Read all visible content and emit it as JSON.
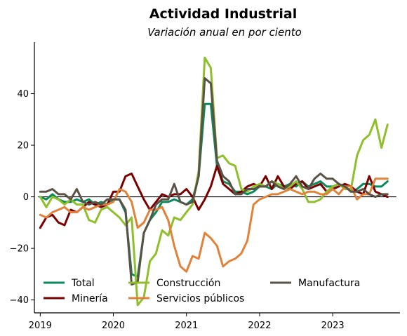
{
  "chart_data": {
    "type": "line",
    "title": "Actividad Industrial",
    "subtitle": "Variación anual en por ciento",
    "xlabel": "",
    "ylabel": "",
    "xlim": [
      2018.92,
      2023.92
    ],
    "ylim": [
      -45,
      60
    ],
    "x_ticks": [
      2019,
      2020,
      2021,
      2022,
      2023
    ],
    "x_tick_labels": [
      "2019",
      "2020",
      "2021",
      "2022",
      "2023"
    ],
    "y_ticks": [
      -40,
      -20,
      0,
      20,
      40
    ],
    "y_tick_labels": [
      "−40",
      "−20",
      "0",
      "20",
      "40"
    ],
    "zero_line": true,
    "grid": false,
    "legend_placement": "lower-left",
    "series": [
      {
        "name": "Total",
        "color": "#0a8a5a",
        "x": [
          2019.0,
          2019.083,
          2019.167,
          2019.25,
          2019.333,
          2019.417,
          2019.5,
          2019.583,
          2019.667,
          2019.75,
          2019.833,
          2019.917,
          2020.0,
          2020.083,
          2020.167,
          2020.25,
          2020.333,
          2020.417,
          2020.5,
          2020.583,
          2020.667,
          2020.75,
          2020.833,
          2020.917,
          2021.0,
          2021.083,
          2021.167,
          2021.25,
          2021.333,
          2021.417,
          2021.5,
          2021.583,
          2021.667,
          2021.75,
          2021.833,
          2021.917,
          2022.0,
          2022.083,
          2022.167,
          2022.25,
          2022.333,
          2022.417,
          2022.5,
          2022.583,
          2022.667,
          2022.75,
          2022.833,
          2022.917,
          2023.0,
          2023.083,
          2023.167,
          2023.25,
          2023.333,
          2023.417,
          2023.5,
          2023.583,
          2023.667,
          2023.75
        ],
        "y": [
          0,
          -1,
          1,
          -1,
          -2,
          -2,
          -1,
          -2,
          -1,
          -3,
          -2,
          -3,
          -1,
          -1,
          -6,
          -30,
          -31,
          -14,
          -9,
          -6,
          -2,
          -2,
          -1,
          -2,
          -3,
          -1,
          8,
          36,
          36,
          12,
          6,
          5,
          2,
          2,
          1,
          2,
          4,
          4,
          3,
          5,
          4,
          5,
          4,
          6,
          4,
          5,
          6,
          4,
          4,
          5,
          4,
          2,
          3,
          5,
          5,
          4,
          4,
          6
        ]
      },
      {
        "name": "Minería",
        "color": "#7a0000",
        "x": [
          2019.0,
          2019.083,
          2019.167,
          2019.25,
          2019.333,
          2019.417,
          2019.5,
          2019.583,
          2019.667,
          2019.75,
          2019.833,
          2019.917,
          2020.0,
          2020.083,
          2020.167,
          2020.25,
          2020.333,
          2020.417,
          2020.5,
          2020.583,
          2020.667,
          2020.75,
          2020.833,
          2020.917,
          2021.0,
          2021.083,
          2021.167,
          2021.25,
          2021.333,
          2021.417,
          2021.5,
          2021.583,
          2021.667,
          2021.75,
          2021.833,
          2021.917,
          2022.0,
          2022.083,
          2022.167,
          2022.25,
          2022.333,
          2022.417,
          2022.5,
          2022.583,
          2022.667,
          2022.75,
          2022.833,
          2022.917,
          2023.0,
          2023.083,
          2023.167,
          2023.25,
          2023.333,
          2023.417,
          2023.5,
          2023.583,
          2023.667,
          2023.75
        ],
        "y": [
          -12,
          -8,
          -7,
          -10,
          -11,
          -5,
          -6,
          -4,
          -2,
          -3,
          -4,
          -3,
          2,
          2,
          8,
          9,
          4,
          -1,
          -5,
          -2,
          1,
          0,
          1,
          1,
          3,
          0,
          -5,
          -1,
          4,
          12,
          5,
          3,
          1,
          2,
          4,
          5,
          4,
          8,
          3,
          8,
          4,
          3,
          5,
          6,
          3,
          4,
          5,
          2,
          3,
          4,
          5,
          4,
          2,
          1,
          8,
          2,
          1,
          0
        ]
      },
      {
        "name": "Construcción",
        "color": "#8fbf2a",
        "x": [
          2019.0,
          2019.083,
          2019.167,
          2019.25,
          2019.333,
          2019.417,
          2019.5,
          2019.583,
          2019.667,
          2019.75,
          2019.833,
          2019.917,
          2020.0,
          2020.083,
          2020.167,
          2020.25,
          2020.333,
          2020.417,
          2020.5,
          2020.583,
          2020.667,
          2020.75,
          2020.833,
          2020.917,
          2021.0,
          2021.083,
          2021.167,
          2021.25,
          2021.333,
          2021.417,
          2021.5,
          2021.583,
          2021.667,
          2021.75,
          2021.833,
          2021.917,
          2022.0,
          2022.083,
          2022.167,
          2022.25,
          2022.333,
          2022.417,
          2022.5,
          2022.583,
          2022.667,
          2022.75,
          2022.833,
          2022.917,
          2023.0,
          2023.083,
          2023.167,
          2023.25,
          2023.333,
          2023.417,
          2023.5,
          2023.583,
          2023.667,
          2023.75
        ],
        "y": [
          0,
          -4,
          0,
          -1,
          -3,
          -1,
          -3,
          -3,
          -9,
          -10,
          -5,
          -4,
          -6,
          -8,
          -11,
          -8,
          -42,
          -39,
          -25,
          -22,
          -13,
          -15,
          -8,
          -9,
          -6,
          -3,
          10,
          54,
          50,
          15,
          16,
          13,
          12,
          3,
          2,
          4,
          5,
          4,
          6,
          5,
          3,
          4,
          6,
          3,
          -2,
          -2,
          -1,
          2,
          4,
          5,
          3,
          3,
          16,
          22,
          24,
          30,
          19,
          28
        ]
      },
      {
        "name": "Servicios públicos",
        "color": "#e0823a",
        "x": [
          2019.0,
          2019.083,
          2019.167,
          2019.25,
          2019.333,
          2019.417,
          2019.5,
          2019.583,
          2019.667,
          2019.75,
          2019.833,
          2019.917,
          2020.0,
          2020.083,
          2020.167,
          2020.25,
          2020.333,
          2020.417,
          2020.5,
          2020.583,
          2020.667,
          2020.75,
          2020.833,
          2020.917,
          2021.0,
          2021.083,
          2021.167,
          2021.25,
          2021.333,
          2021.417,
          2021.5,
          2021.583,
          2021.667,
          2021.75,
          2021.833,
          2021.917,
          2022.0,
          2022.083,
          2022.167,
          2022.25,
          2022.333,
          2022.417,
          2022.5,
          2022.583,
          2022.667,
          2022.75,
          2022.833,
          2022.917,
          2023.0,
          2023.083,
          2023.167,
          2023.25,
          2023.333,
          2023.417,
          2023.5,
          2023.583,
          2023.667,
          2023.75
        ],
        "y": [
          -7,
          -8,
          -6,
          -5,
          -4,
          -6,
          -6,
          -4,
          -5,
          -4,
          -3,
          -3,
          -2,
          3,
          2,
          -2,
          -12,
          -10,
          -5,
          -5,
          -4,
          -9,
          -19,
          -27,
          -29,
          -23,
          -24,
          -14,
          -16,
          -19,
          -27,
          -25,
          -24,
          -22,
          -17,
          -3,
          -1,
          0,
          1,
          1,
          2,
          3,
          2,
          1,
          2,
          2,
          1,
          1,
          3,
          1,
          4,
          4,
          -1,
          1,
          1,
          7,
          7,
          7
        ]
      },
      {
        "name": "Manufactura",
        "color": "#5a5246",
        "x": [
          2019.0,
          2019.083,
          2019.167,
          2019.25,
          2019.333,
          2019.417,
          2019.5,
          2019.583,
          2019.667,
          2019.75,
          2019.833,
          2019.917,
          2020.0,
          2020.083,
          2020.167,
          2020.25,
          2020.333,
          2020.417,
          2020.5,
          2020.583,
          2020.667,
          2020.75,
          2020.833,
          2020.917,
          2021.0,
          2021.083,
          2021.167,
          2021.25,
          2021.333,
          2021.417,
          2021.5,
          2021.583,
          2021.667,
          2021.75,
          2021.833,
          2021.917,
          2022.0,
          2022.083,
          2022.167,
          2022.25,
          2022.333,
          2022.417,
          2022.5,
          2022.583,
          2022.667,
          2022.75,
          2022.833,
          2022.917,
          2023.0,
          2023.083,
          2023.167,
          2023.25,
          2023.333,
          2023.417,
          2023.5,
          2023.583,
          2023.667,
          2023.75
        ],
        "y": [
          2,
          2,
          3,
          1,
          1,
          -1,
          3,
          -2,
          -3,
          -2,
          -3,
          -1,
          -1,
          -1,
          -5,
          -34,
          -33,
          -14,
          -9,
          -3,
          -1,
          -1,
          5,
          -2,
          -3,
          -2,
          8,
          46,
          44,
          14,
          8,
          6,
          1,
          1,
          3,
          3,
          4,
          4,
          6,
          4,
          3,
          5,
          8,
          4,
          3,
          7,
          9,
          7,
          7,
          5,
          4,
          2,
          2,
          3,
          1,
          0,
          1,
          1
        ]
      }
    ]
  }
}
